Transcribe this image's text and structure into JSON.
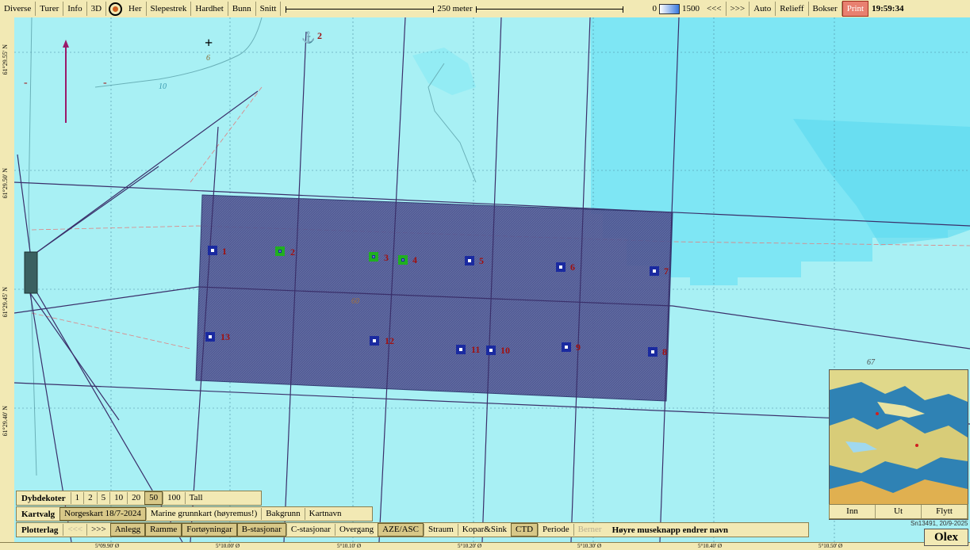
{
  "toolbar": {
    "left_buttons": [
      "Diverse",
      "Turer",
      "Info",
      "3D"
    ],
    "mid_buttons": [
      "Her",
      "Slepestrek",
      "Hardhet",
      "Bunn",
      "Snitt"
    ],
    "scale_label": "250 meter",
    "depth_min": "0",
    "depth_max": "1500",
    "right_buttons": [
      "<<<",
      ">>>",
      "Auto",
      "Relieff",
      "Bokser"
    ],
    "print_label": "Print",
    "clock": "19:59:34"
  },
  "lat_labels": [
    "61°29.55' N",
    "61°29.50' N",
    "61°29.45' N",
    "61°29.40' N"
  ],
  "lon_labels": [
    "5°09.90' Ø",
    "5°10.00' Ø",
    "5°10.10' Ø",
    "5°10.20' Ø",
    "5°10.30' Ø",
    "5°10.40' Ø",
    "5°10.50' Ø"
  ],
  "map": {
    "depth_labels": [
      "6",
      "10",
      "60",
      "67"
    ],
    "anchor_label": "2",
    "stations": [
      {
        "label": "1",
        "color": "blue"
      },
      {
        "label": "2",
        "color": "green"
      },
      {
        "label": "3",
        "color": "green"
      },
      {
        "label": "4",
        "color": "green"
      },
      {
        "label": "5",
        "color": "blue"
      },
      {
        "label": "6",
        "color": "blue"
      },
      {
        "label": "7",
        "color": "blue"
      },
      {
        "label": "8",
        "color": "blue"
      },
      {
        "label": "9",
        "color": "blue"
      },
      {
        "label": "10",
        "color": "blue"
      },
      {
        "label": "11",
        "color": "blue"
      },
      {
        "label": "12",
        "color": "blue"
      },
      {
        "label": "13",
        "color": "blue"
      }
    ],
    "colors": {
      "water": "#a8f0f4",
      "deep": "#7ee6f4",
      "area_fill": "#4a4f8a",
      "station_blue": "#1a2aa0",
      "station_green": "#20b020",
      "label_red": "#a01010"
    }
  },
  "panel": {
    "depth_title": "Dybdekoter",
    "depth_options": [
      "1",
      "2",
      "5",
      "10",
      "20",
      "50",
      "100",
      "Tall"
    ],
    "depth_selected": "50",
    "chart_title": "Kartvalg",
    "chart_options": [
      "Norgeskart 18/7-2024",
      "Marine grunnkart (høyremus!)",
      "Bakgrunn",
      "Kartnavn"
    ],
    "chart_selected": "Norgeskart 18/7-2024",
    "plot_title": "Plotterlag",
    "plot_nav": [
      "<<<",
      ">>>"
    ],
    "plot_layers": [
      {
        "label": "Anlegg",
        "on": true
      },
      {
        "label": "Ramme",
        "on": true
      },
      {
        "label": "Fortøyningar",
        "on": true
      },
      {
        "label": "B-stasjonar",
        "on": true
      },
      {
        "label": "C-stasjonar",
        "on": false
      },
      {
        "label": "Overgang",
        "on": false
      },
      {
        "label": "AZE/ASC",
        "on": true
      },
      {
        "label": "Straum",
        "on": false
      },
      {
        "label": "Kopar&Sink",
        "on": false
      },
      {
        "label": "CTD",
        "on": true
      },
      {
        "label": "Periode",
        "on": false
      },
      {
        "label": "Berner",
        "on": false,
        "dim": true
      }
    ],
    "hint": "Høyre museknapp endrer navn"
  },
  "minimap": {
    "buttons": [
      "Inn",
      "Ut",
      "Flytt"
    ]
  },
  "serial": "Sn13491, 20/9-2025",
  "brand": "Olex"
}
